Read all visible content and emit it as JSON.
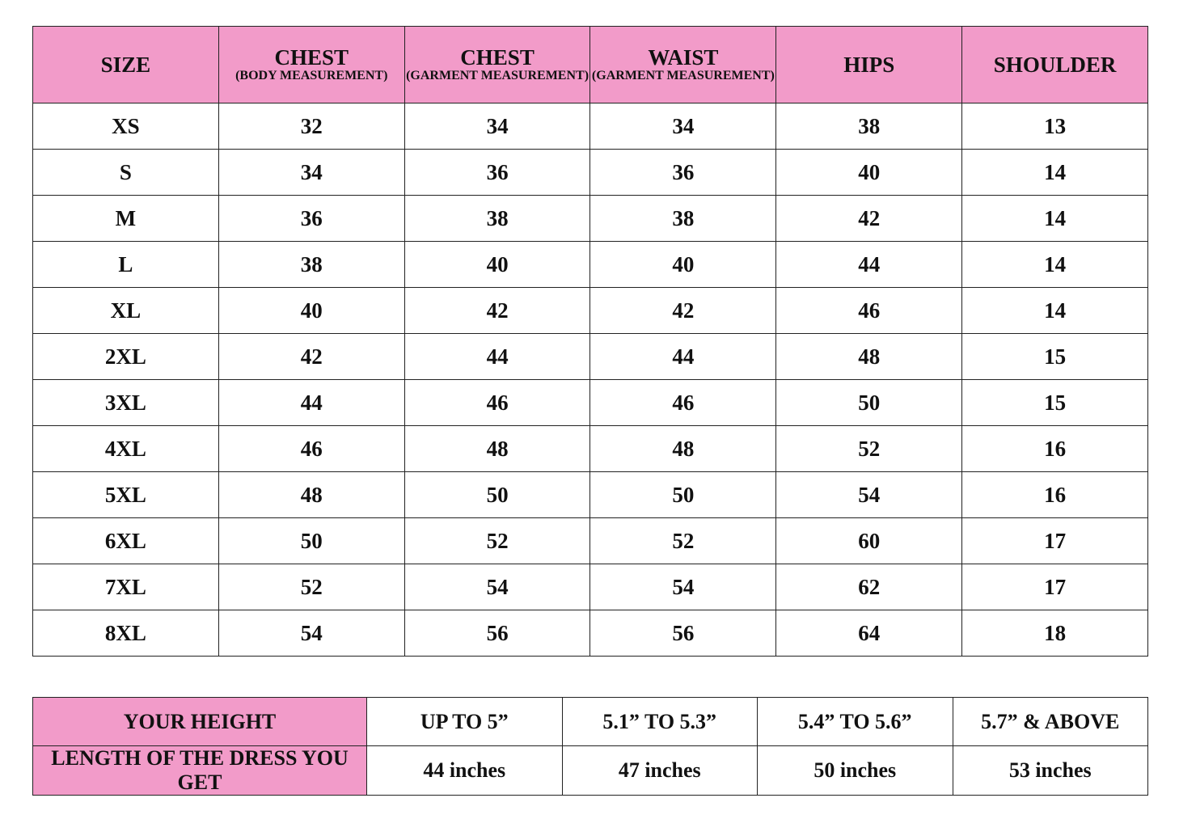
{
  "size_chart": {
    "headers": [
      {
        "title": "SIZE",
        "sub": ""
      },
      {
        "title": "CHEST",
        "sub": "(BODY MEASUREMENT)"
      },
      {
        "title": "CHEST",
        "sub": "(GARMENT MEASUREMENT)"
      },
      {
        "title": "WAIST",
        "sub": "(GARMENT MEASUREMENT)"
      },
      {
        "title": "HIPS",
        "sub": ""
      },
      {
        "title": "SHOULDER",
        "sub": ""
      }
    ],
    "rows": [
      [
        "XS",
        "32",
        "34",
        "34",
        "38",
        "13"
      ],
      [
        "S",
        "34",
        "36",
        "36",
        "40",
        "14"
      ],
      [
        "M",
        "36",
        "38",
        "38",
        "42",
        "14"
      ],
      [
        "L",
        "38",
        "40",
        "40",
        "44",
        "14"
      ],
      [
        "XL",
        "40",
        "42",
        "42",
        "46",
        "14"
      ],
      [
        "2XL",
        "42",
        "44",
        "44",
        "48",
        "15"
      ],
      [
        "3XL",
        "44",
        "46",
        "46",
        "50",
        "15"
      ],
      [
        "4XL",
        "46",
        "48",
        "48",
        "52",
        "16"
      ],
      [
        "5XL",
        "48",
        "50",
        "50",
        "54",
        "16"
      ],
      [
        "6XL",
        "50",
        "52",
        "52",
        "60",
        "17"
      ],
      [
        "7XL",
        "52",
        "54",
        "54",
        "62",
        "17"
      ],
      [
        "8XL",
        "54",
        "56",
        "56",
        "64",
        "18"
      ]
    ]
  },
  "length_chart": {
    "height_label": "YOUR HEIGHT",
    "length_label": "LENGTH OF THE DRESS YOU GET",
    "heights": [
      "UP TO 5”",
      "5.1” TO 5.3”",
      "5.4” TO 5.6”",
      "5.7” & ABOVE"
    ],
    "lengths": [
      "44 inches",
      "47 inches",
      "50 inches",
      "53 inches"
    ]
  },
  "colors": {
    "header_bg": "#f29bc9",
    "border": "#222222"
  }
}
